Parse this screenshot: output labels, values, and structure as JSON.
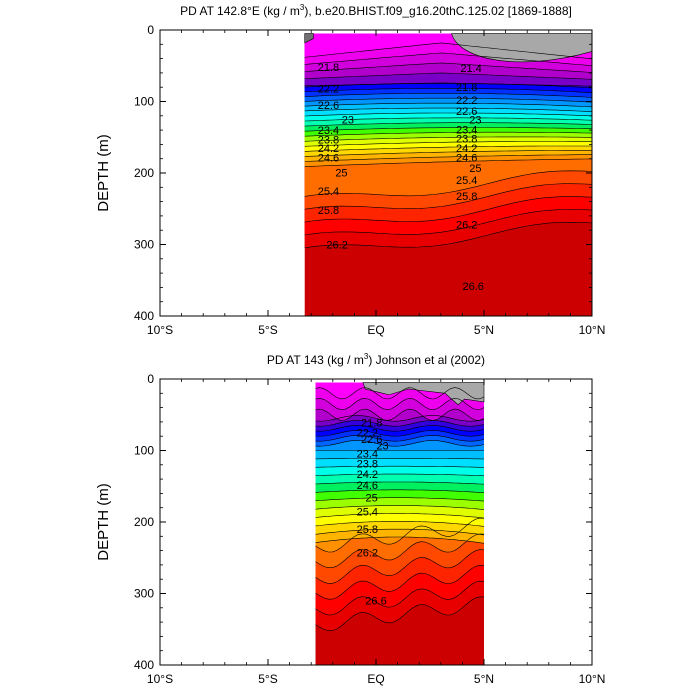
{
  "figure": {
    "panels": [
      {
        "title_prefix": "PD AT 142.8°E (kg / m",
        "title_sup": "3",
        "title_suffix": "), b.e20.BHIST.f09_g16.20thC.125.02 [1869-1888]",
        "ylabel": "DEPTH (m)"
      },
      {
        "title_prefix": "PD AT 143 (kg / m",
        "title_sup": "3",
        "title_suffix": ") Johnson et al (2002)",
        "ylabel": "DEPTH (m)"
      }
    ]
  },
  "chart_data": [
    {
      "type": "heatmap",
      "subtype": "filled-contour-section",
      "title": "PD AT 142.8°E (kg / m3), b.e20.BHIST.f09_g16.20thC.125.02 [1869-1888]",
      "xlabel": "",
      "ylabel": "DEPTH (m)",
      "x_ticks": [
        "10°S",
        "5°S",
        "EQ",
        "5°N",
        "10°N"
      ],
      "x_tick_values": [
        -10,
        -5,
        0,
        5,
        10
      ],
      "y_ticks": [
        0,
        100,
        200,
        300,
        400
      ],
      "xlim": [
        -10,
        10
      ],
      "ylim": [
        400,
        0
      ],
      "data_extent_lat": [
        -3.3,
        10
      ],
      "missing_color": "#a8a8a8",
      "contour_labels": [
        {
          "text": "21.8",
          "lat": -2.2,
          "depth": 52
        },
        {
          "text": "22.2",
          "lat": -2.2,
          "depth": 82
        },
        {
          "text": "22.6",
          "lat": -2.2,
          "depth": 105
        },
        {
          "text": "23",
          "lat": -1.3,
          "depth": 125
        },
        {
          "text": "23.4",
          "lat": -2.2,
          "depth": 140
        },
        {
          "text": "23.8",
          "lat": -2.2,
          "depth": 153
        },
        {
          "text": "24.2",
          "lat": -2.2,
          "depth": 165
        },
        {
          "text": "24.6",
          "lat": -2.2,
          "depth": 178
        },
        {
          "text": "25",
          "lat": -1.6,
          "depth": 199
        },
        {
          "text": "25.4",
          "lat": -2.2,
          "depth": 225
        },
        {
          "text": "25.8",
          "lat": -2.2,
          "depth": 252
        },
        {
          "text": "26.2",
          "lat": -1.8,
          "depth": 300
        },
        {
          "text": "21.4",
          "lat": 4.4,
          "depth": 53
        },
        {
          "text": "21.8",
          "lat": 4.2,
          "depth": 80
        },
        {
          "text": "22.2",
          "lat": 4.2,
          "depth": 98
        },
        {
          "text": "22.6",
          "lat": 4.2,
          "depth": 113
        },
        {
          "text": "23",
          "lat": 4.6,
          "depth": 125
        },
        {
          "text": "23.4",
          "lat": 4.2,
          "depth": 139
        },
        {
          "text": "23.8",
          "lat": 4.2,
          "depth": 152
        },
        {
          "text": "24.2",
          "lat": 4.2,
          "depth": 165
        },
        {
          "text": "24.6",
          "lat": 4.2,
          "depth": 178
        },
        {
          "text": "25",
          "lat": 4.6,
          "depth": 193
        },
        {
          "text": "25.4",
          "lat": 4.2,
          "depth": 210
        },
        {
          "text": "25.8",
          "lat": 4.2,
          "depth": 232
        },
        {
          "text": "26.2",
          "lat": 4.2,
          "depth": 272
        },
        {
          "text": "26.6",
          "lat": 4.5,
          "depth": 358
        }
      ]
    },
    {
      "type": "heatmap",
      "subtype": "filled-contour-section",
      "title": "PD AT 143 (kg / m3) Johnson et al (2002)",
      "xlabel": "",
      "ylabel": "DEPTH (m)",
      "x_ticks": [
        "10°S",
        "5°S",
        "EQ",
        "5°N",
        "10°N"
      ],
      "x_tick_values": [
        -10,
        -5,
        0,
        5,
        10
      ],
      "y_ticks": [
        0,
        100,
        200,
        300,
        400
      ],
      "xlim": [
        -10,
        10
      ],
      "ylim": [
        400,
        0
      ],
      "data_extent_lat": [
        -2.8,
        5
      ],
      "missing_color": "#a8a8a8",
      "contour_labels": [
        {
          "text": "21.8",
          "lat": -0.2,
          "depth": 61
        },
        {
          "text": "22.2",
          "lat": -0.4,
          "depth": 75
        },
        {
          "text": "22.6",
          "lat": -0.2,
          "depth": 84
        },
        {
          "text": "23",
          "lat": 0.3,
          "depth": 93
        },
        {
          "text": "23.4",
          "lat": -0.4,
          "depth": 104
        },
        {
          "text": "23.8",
          "lat": -0.4,
          "depth": 118
        },
        {
          "text": "24.2",
          "lat": -0.4,
          "depth": 133
        },
        {
          "text": "24.6",
          "lat": -0.4,
          "depth": 148
        },
        {
          "text": "25",
          "lat": -0.2,
          "depth": 166
        },
        {
          "text": "25.4",
          "lat": -0.4,
          "depth": 185
        },
        {
          "text": "25.8",
          "lat": -0.4,
          "depth": 210
        },
        {
          "text": "26.2",
          "lat": -0.4,
          "depth": 243
        },
        {
          "text": "26.6",
          "lat": 0.0,
          "depth": 310
        }
      ]
    }
  ]
}
